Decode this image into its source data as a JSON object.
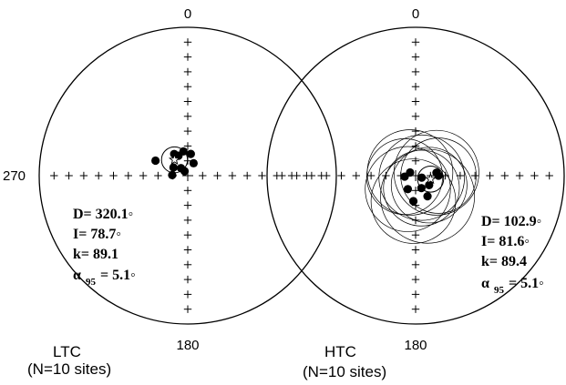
{
  "panels": [
    {
      "id": "ltc",
      "label": "LTC",
      "sublabel": "(N=10 sites)",
      "axis_labels": {
        "north": "0",
        "south": "180",
        "west": "270"
      },
      "stats": {
        "D": "D= 320.1◦",
        "I": "I= 78.7◦",
        "k": "k= 89.1",
        "alpha_prefix": "α",
        "alpha_sub": "95",
        "alpha_value": "= 5.1◦"
      },
      "sites": [
        {
          "dec": 295,
          "inc": 70.5
        },
        {
          "dec": 335,
          "inc": 78.0
        },
        {
          "dec": 350,
          "inc": 76.5
        },
        {
          "dec": 8,
          "inc": 78.0
        },
        {
          "dec": 328,
          "inc": 76.0
        },
        {
          "dec": 25,
          "inc": 82.5
        },
        {
          "dec": 272,
          "inc": 81.5
        },
        {
          "dec": 300,
          "inc": 81.0
        },
        {
          "dec": 318,
          "inc": 84.5
        },
        {
          "dec": 325,
          "inc": 87.0
        }
      ],
      "mean": {
        "dec": 320.1,
        "inc": 78.7,
        "a95": 5.1
      }
    },
    {
      "id": "htc",
      "label": "HTC",
      "sublabel": "(N=10 sites)",
      "axis_labels": {
        "north": "0",
        "south": "180"
      },
      "stats": {
        "D": "D= 102.9◦",
        "I": "I= 81.6◦",
        "k": "k= 89.4",
        "alpha_prefix": "α",
        "alpha_sub": "95",
        "alpha_value": "= 5.1◦"
      },
      "sites": [
        {
          "dec": 265,
          "inc": 84.0
        },
        {
          "dec": 300,
          "inc": 86.5
        },
        {
          "dec": 90,
          "inc": 77.5
        },
        {
          "dec": 82,
          "inc": 78.5
        },
        {
          "dec": 150,
          "inc": 77.0
        },
        {
          "dec": 125,
          "inc": 81.0
        },
        {
          "dec": 210,
          "inc": 81.5
        },
        {
          "dec": 185,
          "inc": 76.0
        },
        {
          "dec": 155,
          "inc": 82.5
        },
        {
          "dec": 108,
          "inc": 86.5
        }
      ],
      "site_a95": [
        8,
        9,
        8,
        9,
        10,
        8,
        9,
        9,
        8,
        9
      ],
      "mean": {
        "dec": 102.9,
        "inc": 81.6,
        "a95": 5.1
      }
    }
  ]
}
